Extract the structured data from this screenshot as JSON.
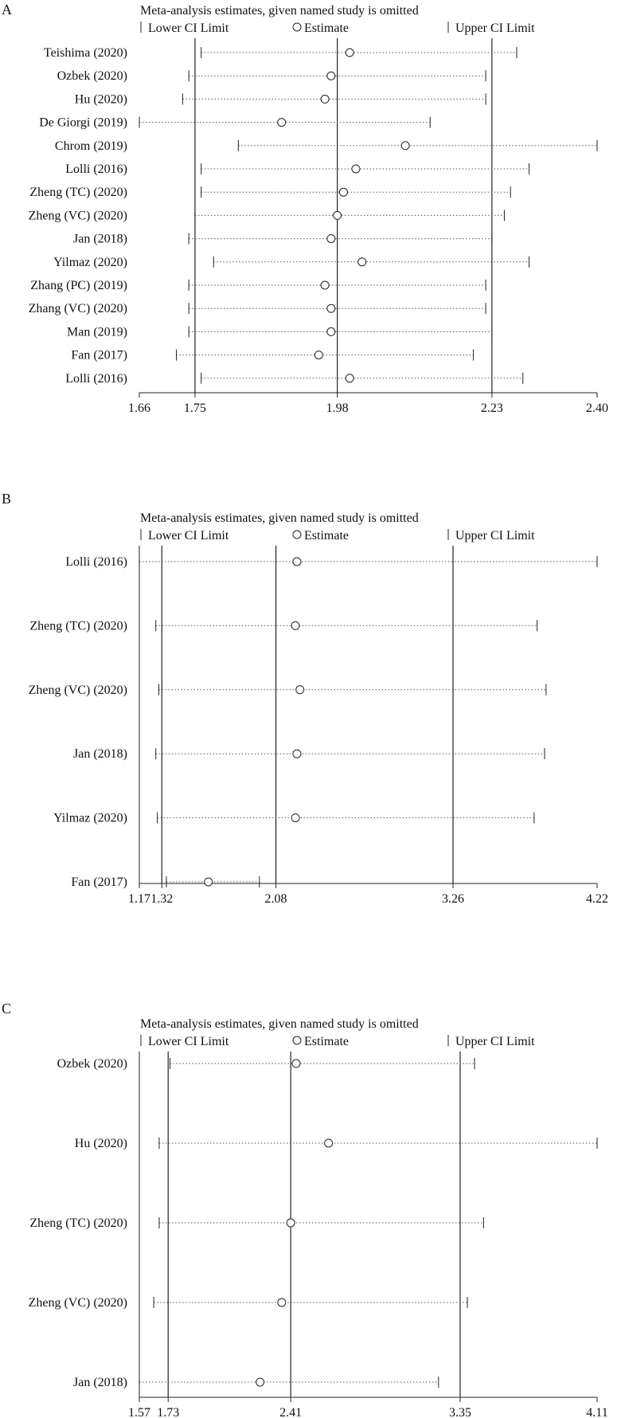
{
  "chart_data": [
    {
      "panel": "A",
      "type": "scatter",
      "title": "Meta-analysis estimates, given named study is omitted",
      "legend": {
        "lower": "Lower CI Limit",
        "estimate": "Estimate",
        "upper": "Upper CI Limit"
      },
      "xlim": [
        1.66,
        2.4
      ],
      "xticks": [
        "1.66",
        "1.75",
        "1.98",
        "2.23",
        "2.40"
      ],
      "reference_lines": [
        1.75,
        1.98,
        2.23
      ],
      "studies": [
        {
          "label": "Teishima (2020)",
          "lower": 1.76,
          "estimate": 2.0,
          "upper": 2.27
        },
        {
          "label": "Ozbek (2020)",
          "lower": 1.74,
          "estimate": 1.97,
          "upper": 2.22
        },
        {
          "label": "Hu (2020)",
          "lower": 1.73,
          "estimate": 1.96,
          "upper": 2.22
        },
        {
          "label": "De Giorgi (2019)",
          "lower": 1.66,
          "estimate": 1.89,
          "upper": 2.13
        },
        {
          "label": "Chrom (2019)",
          "lower": 1.82,
          "estimate": 2.09,
          "upper": 2.4
        },
        {
          "label": "Lolli (2016)",
          "lower": 1.76,
          "estimate": 2.01,
          "upper": 2.29
        },
        {
          "label": "Zheng (TC) (2020)",
          "lower": 1.76,
          "estimate": 1.99,
          "upper": 2.26
        },
        {
          "label": "Zheng (VC) (2020)",
          "lower": 1.75,
          "estimate": 1.98,
          "upper": 2.25
        },
        {
          "label": "Jan (2018)",
          "lower": 1.74,
          "estimate": 1.97,
          "upper": 2.23
        },
        {
          "label": "Yilmaz (2020)",
          "lower": 1.78,
          "estimate": 2.02,
          "upper": 2.29
        },
        {
          "label": "Zhang (PC) (2019)",
          "lower": 1.74,
          "estimate": 1.96,
          "upper": 2.22
        },
        {
          "label": "Zhang (VC) (2020)",
          "lower": 1.74,
          "estimate": 1.97,
          "upper": 2.22
        },
        {
          "label": "Man (2019)",
          "lower": 1.74,
          "estimate": 1.97,
          "upper": 2.23
        },
        {
          "label": "Fan (2017)",
          "lower": 1.72,
          "estimate": 1.95,
          "upper": 2.2
        },
        {
          "label": "Lolli (2016)",
          "lower": 1.76,
          "estimate": 2.0,
          "upper": 2.28
        }
      ]
    },
    {
      "panel": "B",
      "type": "scatter",
      "title": "Meta-analysis estimates, given named study is omitted",
      "legend": {
        "lower": "Lower CI Limit",
        "estimate": "Estimate",
        "upper": "Upper CI Limit"
      },
      "xlim": [
        1.17,
        4.22
      ],
      "xticks": [
        "1.17",
        "1.32",
        "2.08",
        "3.26",
        "4.22"
      ],
      "reference_lines": [
        1.32,
        2.08,
        3.26
      ],
      "studies": [
        {
          "label": "Lolli (2016)",
          "lower": 1.17,
          "estimate": 2.22,
          "upper": 4.22
        },
        {
          "label": "Zheng (TC) (2020)",
          "lower": 1.28,
          "estimate": 2.21,
          "upper": 3.82
        },
        {
          "label": "Zheng (VC) (2020)",
          "lower": 1.3,
          "estimate": 2.24,
          "upper": 3.88
        },
        {
          "label": "Jan (2018)",
          "lower": 1.28,
          "estimate": 2.22,
          "upper": 3.87
        },
        {
          "label": "Yilmaz (2020)",
          "lower": 1.29,
          "estimate": 2.21,
          "upper": 3.8
        },
        {
          "label": "Fan (2017)",
          "lower": 1.35,
          "estimate": 1.63,
          "upper": 1.97
        }
      ]
    },
    {
      "panel": "C",
      "type": "scatter",
      "title": "Meta-analysis estimates, given named study is omitted",
      "legend": {
        "lower": "Lower CI Limit",
        "estimate": "Estimate",
        "upper": "Upper CI Limit"
      },
      "xlim": [
        1.57,
        4.11
      ],
      "xticks": [
        "1.57",
        "1.73",
        "2.41",
        "3.35",
        "4.11"
      ],
      "reference_lines": [
        1.73,
        2.41,
        3.35
      ],
      "studies": [
        {
          "label": "Ozbek (2020)",
          "lower": 1.74,
          "estimate": 2.44,
          "upper": 3.43
        },
        {
          "label": "Hu (2020)",
          "lower": 1.68,
          "estimate": 2.62,
          "upper": 4.11
        },
        {
          "label": "Zheng (TC) (2020)",
          "lower": 1.68,
          "estimate": 2.41,
          "upper": 3.48
        },
        {
          "label": "Zheng (VC) (2020)",
          "lower": 1.65,
          "estimate": 2.36,
          "upper": 3.39
        },
        {
          "label": "Jan (2018)",
          "lower": 1.57,
          "estimate": 2.24,
          "upper": 3.23
        }
      ]
    }
  ]
}
